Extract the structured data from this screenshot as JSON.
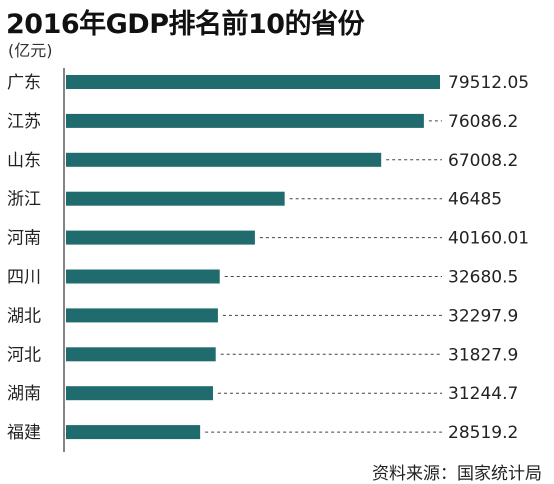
{
  "chart_data": {
    "type": "bar",
    "orientation": "horizontal",
    "title": "2016年GDP排名前10的省份",
    "unit": "(亿元)",
    "categories": [
      "广东",
      "江苏",
      "山东",
      "浙江",
      "河南",
      "四川",
      "湖北",
      "河北",
      "湖南",
      "福建"
    ],
    "values": [
      79512.05,
      76086.2,
      67008.2,
      46485,
      40160.01,
      32680.5,
      32297.9,
      31827.9,
      31244.7,
      28519.2
    ],
    "value_labels": [
      "79512.05",
      "76086.2",
      "67008.2",
      "46485",
      "40160.01",
      "32680.5",
      "32297.9",
      "31827.9",
      "31244.7",
      "28519.2"
    ],
    "xlim": [
      0,
      79512.05
    ],
    "grid": false,
    "bar_color": "#1f6b6d",
    "source": "资料来源：国家统计局"
  }
}
